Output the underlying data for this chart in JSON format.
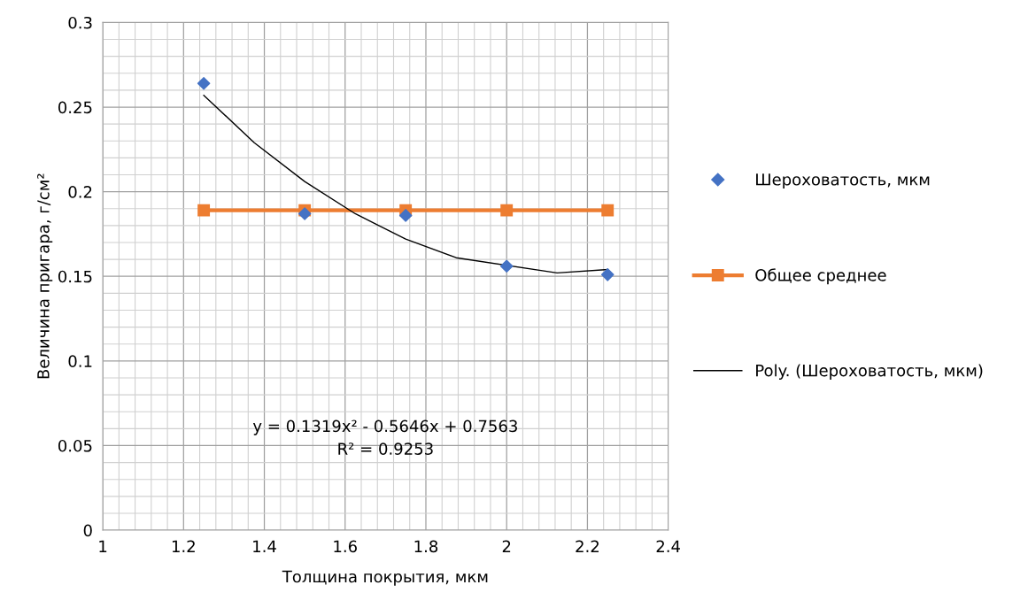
{
  "chart_data": {
    "type": "scatter",
    "xlabel": "Толщина покрытия, мкм",
    "ylabel": "Величина пригара, г/см²",
    "xlim": [
      1,
      2.4
    ],
    "xticks": [
      1,
      1.2,
      1.4,
      1.6,
      1.8,
      2,
      2.2,
      2.4
    ],
    "ylim": [
      0,
      0.3
    ],
    "yticks": [
      0,
      0.05,
      0.1,
      0.15,
      0.2,
      0.25,
      0.3
    ],
    "grid": true,
    "legend": "right",
    "series": [
      {
        "name": "Шероховатость, мкм",
        "marker": "diamond",
        "color": "#4472c4",
        "x": [
          1.25,
          1.5,
          1.75,
          2,
          2.25
        ],
        "values": [
          0.264,
          0.187,
          0.186,
          0.156,
          0.151
        ]
      },
      {
        "name": "Общее среднее",
        "type": "line",
        "marker": "square",
        "color": "#ed7d31",
        "x": [
          1.25,
          1.5,
          1.75,
          2,
          2.25
        ],
        "values": [
          0.189,
          0.189,
          0.189,
          0.189,
          0.189
        ]
      },
      {
        "name": "Poly. (Шероховатость, мкм)",
        "type": "line",
        "marker": "none",
        "color": "#000000",
        "x": [
          1.25,
          1.375,
          1.5,
          1.625,
          1.75,
          1.875,
          2.125,
          2.25
        ],
        "values": [
          0.257,
          0.229,
          0.206,
          0.187,
          0.172,
          0.161,
          0.152,
          0.154
        ]
      }
    ],
    "annotations": [
      "y = 0.1319x² - 0.5646x + 0.7563\nR² = 0.9253"
    ]
  }
}
